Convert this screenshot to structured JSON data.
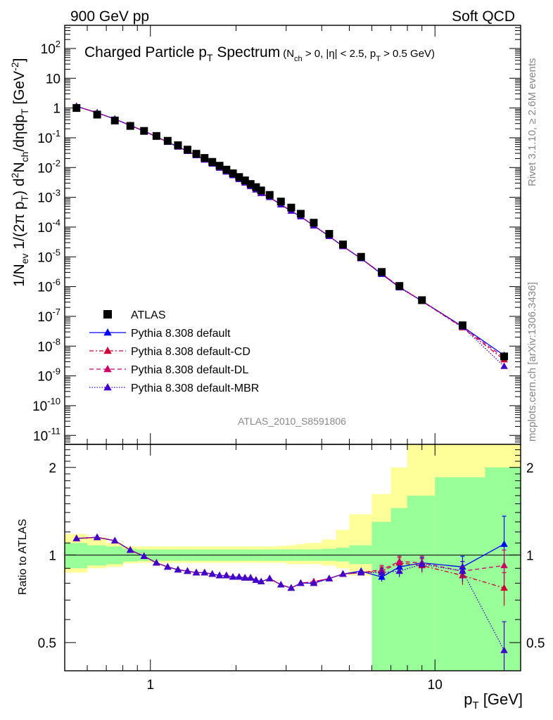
{
  "header": {
    "left": "900 GeV pp",
    "right": "Soft QCD"
  },
  "side_labels": {
    "rivet": "Rivet 3.1.10, ≥ 2.6M events",
    "mcplots": "mcplots.cern.ch [arXiv:1306.3436]"
  },
  "watermark": "ATLAS_2010_S8591806",
  "colors": {
    "band_green": "#99ff99",
    "band_yellow": "#ffff99",
    "data": "#000000",
    "default": "#0000ff",
    "cd": "#cc0033",
    "dl": "#cc0066",
    "mbr": "#4000cc"
  },
  "chart_data": [
    {
      "type": "scatter",
      "title": "Charged Particle p_T Spectrum (N_ch > 0, |η| < 2.5, p_T > 0.5 GeV)",
      "title_parts": {
        "main": "Charged Particle p",
        "main_sub": "T",
        "main_tail": " Spectrum",
        "cond1": "(N",
        "cond1_sub": "ch",
        "cond2": " > 0, |η| < 2.5, p",
        "cond2_sub": "T",
        "cond3": " > 0.5 GeV)"
      },
      "ylabel": "1/N_ev 1/(2π p_T) d²N_ch/dηdp_T [GeV⁻²]",
      "ylabel_parts": {
        "a": "1/N",
        "a_sub": "ev",
        "b": "  1/(2π p",
        "b_sub": "T",
        "c": ")  d",
        "c_sup": "2",
        "d": "N",
        "d_sub": "ch",
        "e": "/dηdp",
        "e_sub": "T",
        "f": " [GeV",
        "f_sup": "-2",
        "g": "]"
      },
      "xscale": "log",
      "yscale": "log",
      "xlim": [
        0.5,
        20
      ],
      "ylim": [
        5e-12,
        600.0
      ],
      "yticks": [
        {
          "base": "10",
          "exp": "-11",
          "v": 1e-11
        },
        {
          "base": "10",
          "exp": "-10",
          "v": 1e-10
        },
        {
          "base": "10",
          "exp": "-9",
          "v": 1e-09
        },
        {
          "base": "10",
          "exp": "-8",
          "v": 1e-08
        },
        {
          "base": "10",
          "exp": "-7",
          "v": 1e-07
        },
        {
          "base": "10",
          "exp": "-6",
          "v": 1e-06
        },
        {
          "base": "10",
          "exp": "-5",
          "v": 1e-05
        },
        {
          "base": "10",
          "exp": "-4",
          "v": 0.0001
        },
        {
          "base": "10",
          "exp": "-3",
          "v": 0.001
        },
        {
          "base": "10",
          "exp": "-2",
          "v": 0.01
        },
        {
          "base": "10",
          "exp": "-1",
          "v": 0.1
        },
        {
          "base": "1",
          "exp": "",
          "v": 1
        },
        {
          "base": "10",
          "exp": "",
          "v": 10
        },
        {
          "base": "10",
          "exp": "2",
          "v": 100
        }
      ],
      "legend_position": "lower-left",
      "x": [
        0.55,
        0.65,
        0.75,
        0.85,
        0.95,
        1.05,
        1.15,
        1.25,
        1.35,
        1.45,
        1.55,
        1.65,
        1.75,
        1.85,
        1.95,
        2.05,
        2.15,
        2.25,
        2.35,
        2.45,
        2.625,
        2.875,
        3.125,
        3.375,
        3.75,
        4.25,
        4.75,
        5.5,
        6.5,
        7.5,
        9.0,
        12.5,
        17.5
      ],
      "series": [
        {
          "name": "ATLAS",
          "marker": "square",
          "color": "#000000",
          "values": [
            1.0,
            0.6,
            0.38,
            0.25,
            0.17,
            0.115,
            0.079,
            0.056,
            0.04,
            0.029,
            0.021,
            0.0155,
            0.0115,
            0.0085,
            0.0064,
            0.0048,
            0.0037,
            0.0028,
            0.0022,
            0.0017,
            0.0012,
            0.00072,
            0.00045,
            0.00028,
            0.00014,
            5.9e-05,
            2.6e-05,
            1e-05,
            3.1e-06,
            1.05e-06,
            3.5e-07,
            5e-08,
            4.5e-09
          ]
        },
        {
          "name": "Pythia 8.308 default",
          "marker": "triangle",
          "color": "#0000ff",
          "dash": "",
          "values": [
            1.14,
            0.69,
            0.426,
            0.26,
            0.168,
            0.108,
            0.0717,
            0.0498,
            0.0353,
            0.0253,
            0.0182,
            0.0133,
            0.00976,
            0.00719,
            0.00539,
            0.00402,
            0.00309,
            0.00234,
            0.0018,
            0.00137,
            0.000996,
            0.000566,
            0.000347,
            0.000224,
            0.000112,
            4.9e-05,
            2.24e-05,
            8.8e-06,
            2.6e-06,
            9.5e-07,
            3.29e-07,
            4.55e-08,
            4.9e-09
          ],
          "ratio": [
            1.14,
            1.15,
            1.12,
            1.04,
            0.99,
            0.94,
            0.91,
            0.89,
            0.88,
            0.87,
            0.87,
            0.86,
            0.85,
            0.85,
            0.84,
            0.84,
            0.835,
            0.835,
            0.82,
            0.81,
            0.83,
            0.79,
            0.77,
            0.8,
            0.8,
            0.83,
            0.86,
            0.88,
            0.84,
            0.91,
            0.94,
            0.91,
            1.09
          ],
          "ratio_err": [
            0,
            0,
            0,
            0,
            0,
            0,
            0,
            0,
            0,
            0,
            0,
            0,
            0,
            0,
            0,
            0,
            0,
            0,
            0,
            0,
            0,
            0,
            0,
            0,
            0,
            0,
            0,
            0,
            0.03,
            0.04,
            0.04,
            0.08,
            0.27
          ]
        },
        {
          "name": "Pythia 8.308 default-CD",
          "marker": "triangle",
          "color": "#cc0033",
          "dash": "6,3,2,3",
          "values": [
            1.14,
            0.69,
            0.426,
            0.26,
            0.168,
            0.108,
            0.0717,
            0.0498,
            0.0353,
            0.0253,
            0.0182,
            0.0133,
            0.00976,
            0.00719,
            0.00539,
            0.00402,
            0.00309,
            0.00234,
            0.0018,
            0.00137,
            0.000996,
            0.000566,
            0.000347,
            0.000224,
            0.000112,
            4.9e-05,
            2.24e-05,
            8.8e-06,
            2.7e-06,
            9.7e-07,
            3.22e-07,
            4.2e-08,
            3.5e-09
          ],
          "ratio": [
            1.14,
            1.15,
            1.12,
            1.04,
            0.99,
            0.94,
            0.91,
            0.89,
            0.88,
            0.87,
            0.87,
            0.86,
            0.85,
            0.85,
            0.84,
            0.84,
            0.835,
            0.835,
            0.82,
            0.81,
            0.83,
            0.79,
            0.77,
            0.8,
            0.81,
            0.83,
            0.86,
            0.87,
            0.88,
            0.94,
            0.92,
            0.85,
            0.77
          ],
          "ratio_err": [
            0,
            0,
            0,
            0,
            0,
            0,
            0,
            0,
            0,
            0,
            0,
            0,
            0,
            0,
            0,
            0,
            0,
            0,
            0,
            0,
            0,
            0,
            0,
            0,
            0,
            0,
            0,
            0,
            0.03,
            0.04,
            0.05,
            0.06,
            0.1
          ]
        },
        {
          "name": "Pythia 8.308 default-DL",
          "marker": "triangle",
          "color": "#cc0066",
          "dash": "6,4",
          "values": [
            1.14,
            0.69,
            0.426,
            0.26,
            0.168,
            0.108,
            0.0717,
            0.0498,
            0.0353,
            0.0253,
            0.0182,
            0.0133,
            0.00976,
            0.00719,
            0.00539,
            0.00402,
            0.00309,
            0.00234,
            0.0018,
            0.00137,
            0.000996,
            0.000566,
            0.000347,
            0.000224,
            0.000112,
            4.9e-05,
            2.24e-05,
            8.8e-06,
            2.75e-06,
            9.9e-07,
            3.29e-07,
            4.4e-08,
            4.1e-09
          ],
          "ratio": [
            1.14,
            1.15,
            1.12,
            1.04,
            0.99,
            0.94,
            0.91,
            0.89,
            0.88,
            0.87,
            0.87,
            0.86,
            0.85,
            0.85,
            0.84,
            0.84,
            0.835,
            0.835,
            0.82,
            0.81,
            0.83,
            0.79,
            0.77,
            0.8,
            0.81,
            0.83,
            0.86,
            0.87,
            0.89,
            0.95,
            0.94,
            0.88,
            0.92
          ],
          "ratio_err": [
            0,
            0,
            0,
            0,
            0,
            0,
            0,
            0,
            0,
            0,
            0,
            0,
            0,
            0,
            0,
            0,
            0,
            0,
            0,
            0,
            0,
            0,
            0,
            0,
            0,
            0,
            0,
            0,
            0.03,
            0.04,
            0.05,
            0.07,
            0.12
          ]
        },
        {
          "name": "Pythia 8.308 default-MBR",
          "marker": "triangle",
          "color": "#4000cc",
          "dash": "1.5,2",
          "values": [
            1.14,
            0.69,
            0.426,
            0.26,
            0.168,
            0.108,
            0.0717,
            0.0498,
            0.0353,
            0.0253,
            0.0182,
            0.0133,
            0.00976,
            0.00719,
            0.00539,
            0.00402,
            0.00309,
            0.00234,
            0.0018,
            0.00137,
            0.000996,
            0.000566,
            0.000347,
            0.000224,
            0.000112,
            4.9e-05,
            2.24e-05,
            8.7e-06,
            2.7e-06,
            9.2e-07,
            3.26e-07,
            4.4e-08,
            2.1e-09
          ],
          "ratio": [
            1.14,
            1.15,
            1.12,
            1.04,
            0.99,
            0.94,
            0.91,
            0.89,
            0.88,
            0.87,
            0.87,
            0.86,
            0.85,
            0.85,
            0.84,
            0.84,
            0.835,
            0.835,
            0.82,
            0.81,
            0.83,
            0.79,
            0.77,
            0.8,
            0.8,
            0.83,
            0.86,
            0.87,
            0.87,
            0.88,
            0.93,
            0.88,
            0.47
          ],
          "ratio_err": [
            0,
            0,
            0,
            0,
            0,
            0,
            0,
            0,
            0,
            0,
            0,
            0,
            0,
            0,
            0,
            0,
            0,
            0,
            0,
            0,
            0,
            0,
            0,
            0,
            0,
            0,
            0,
            0,
            0.03,
            0.04,
            0.05,
            0.07,
            0.12
          ]
        }
      ]
    },
    {
      "type": "line",
      "ylabel": "Ratio to ATLAS",
      "xlabel": "p_T [GeV]",
      "xlabel_parts": {
        "a": "p",
        "a_sub": "T",
        "b": " [GeV]"
      },
      "xscale": "log",
      "yscale": "log",
      "xlim": [
        0.5,
        20
      ],
      "ylim": [
        0.4,
        2.4
      ],
      "yticks": [
        {
          "label": "0.5",
          "v": 0.5
        },
        {
          "label": "1",
          "v": 1
        },
        {
          "label": "2",
          "v": 2
        }
      ],
      "xticks": [
        {
          "label": "1",
          "v": 1
        },
        {
          "label": "10",
          "v": 10
        }
      ],
      "reference_line": 1,
      "bins": [
        [
          0.5,
          0.6
        ],
        [
          0.6,
          0.7
        ],
        [
          0.7,
          0.8
        ],
        [
          0.8,
          0.9
        ],
        [
          0.9,
          1.0
        ],
        [
          1.0,
          1.1
        ],
        [
          1.1,
          1.2
        ],
        [
          1.2,
          1.3
        ],
        [
          1.3,
          1.4
        ],
        [
          1.4,
          1.5
        ],
        [
          1.5,
          1.6
        ],
        [
          1.6,
          1.7
        ],
        [
          1.7,
          1.8
        ],
        [
          1.8,
          1.9
        ],
        [
          1.9,
          2.0
        ],
        [
          2.0,
          2.1
        ],
        [
          2.1,
          2.2
        ],
        [
          2.2,
          2.3
        ],
        [
          2.3,
          2.4
        ],
        [
          2.4,
          2.5
        ],
        [
          2.5,
          2.75
        ],
        [
          2.75,
          3.0
        ],
        [
          3.0,
          3.25
        ],
        [
          3.25,
          3.5
        ],
        [
          3.5,
          4.0
        ],
        [
          4.0,
          4.5
        ],
        [
          4.5,
          5.0
        ],
        [
          5.0,
          6.0
        ],
        [
          6.0,
          7.0
        ],
        [
          7.0,
          8.0
        ],
        [
          8.0,
          10.0
        ],
        [
          10.0,
          15.0
        ],
        [
          15.0,
          20.0
        ]
      ],
      "band_inner": [
        [
          0.9,
          1.1
        ],
        [
          0.92,
          1.08
        ],
        [
          0.93,
          1.07
        ],
        [
          0.95,
          1.05
        ],
        [
          0.955,
          1.045
        ],
        [
          0.955,
          1.045
        ],
        [
          0.955,
          1.045
        ],
        [
          0.955,
          1.045
        ],
        [
          0.955,
          1.045
        ],
        [
          0.955,
          1.045
        ],
        [
          0.955,
          1.045
        ],
        [
          0.955,
          1.045
        ],
        [
          0.955,
          1.045
        ],
        [
          0.955,
          1.045
        ],
        [
          0.955,
          1.045
        ],
        [
          0.955,
          1.045
        ],
        [
          0.955,
          1.045
        ],
        [
          0.955,
          1.045
        ],
        [
          0.955,
          1.045
        ],
        [
          0.955,
          1.045
        ],
        [
          0.955,
          1.045
        ],
        [
          0.955,
          1.045
        ],
        [
          0.955,
          1.045
        ],
        [
          0.955,
          1.045
        ],
        [
          0.955,
          1.045
        ],
        [
          0.955,
          1.05
        ],
        [
          0.95,
          1.06
        ],
        [
          0.93,
          1.08
        ],
        [
          0.3,
          1.3
        ],
        [
          0.3,
          1.45
        ],
        [
          0.3,
          1.6
        ],
        [
          0.3,
          1.85
        ],
        [
          0.3,
          2.0
        ]
      ],
      "band_outer": [
        [
          0.87,
          1.18
        ],
        [
          0.9,
          1.15
        ],
        [
          0.91,
          1.1
        ],
        [
          0.935,
          1.07
        ],
        [
          0.94,
          1.07
        ],
        [
          0.94,
          1.07
        ],
        [
          0.94,
          1.07
        ],
        [
          0.94,
          1.07
        ],
        [
          0.94,
          1.07
        ],
        [
          0.94,
          1.07
        ],
        [
          0.94,
          1.07
        ],
        [
          0.94,
          1.07
        ],
        [
          0.94,
          1.07
        ],
        [
          0.94,
          1.07
        ],
        [
          0.94,
          1.07
        ],
        [
          0.94,
          1.07
        ],
        [
          0.94,
          1.07
        ],
        [
          0.94,
          1.07
        ],
        [
          0.94,
          1.07
        ],
        [
          0.94,
          1.07
        ],
        [
          0.94,
          1.07
        ],
        [
          0.94,
          1.075
        ],
        [
          0.93,
          1.08
        ],
        [
          0.93,
          1.09
        ],
        [
          0.93,
          1.1
        ],
        [
          0.92,
          1.13
        ],
        [
          0.9,
          1.22
        ],
        [
          0.85,
          1.38
        ],
        [
          0.3,
          1.62
        ],
        [
          0.3,
          2.0
        ],
        [
          0.3,
          2.5
        ],
        [
          0.3,
          2.5
        ],
        [
          0.3,
          2.5
        ]
      ]
    }
  ]
}
